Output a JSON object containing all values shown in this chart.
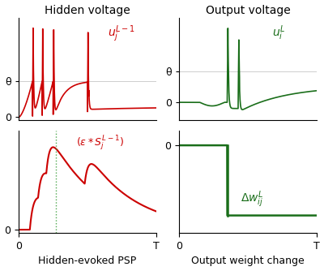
{
  "fig_width": 4.0,
  "fig_height": 3.34,
  "dpi": 100,
  "red_color": "#cc0000",
  "green_color": "#1a6e1a",
  "green_dotted": "#3a9e3a",
  "theta_label": "θ",
  "titles": [
    "Hidden voltage",
    "Output voltage"
  ],
  "xlabels": [
    "Hidden-evoked PSP",
    "Output weight change"
  ],
  "T_label": "T",
  "zero_label": "0",
  "background": "#ffffff"
}
